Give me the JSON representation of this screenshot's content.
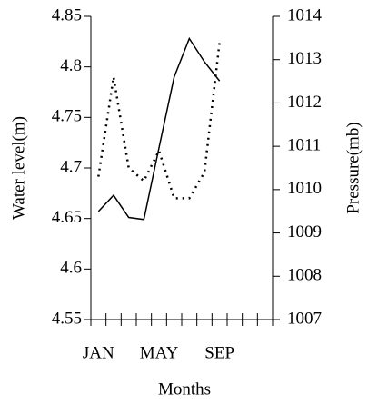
{
  "chart_data": {
    "type": "line",
    "xlabel": "Months",
    "ylabel": "Water level(m)",
    "y2label": "Pressure(mb)",
    "categories": [
      "JAN",
      null,
      null,
      null,
      "MAY",
      null,
      null,
      null,
      "SEP",
      null,
      null,
      null
    ],
    "series": [
      {
        "color": "#000000",
        "dash": "solid",
        "values": [
          4.657,
          4.673,
          4.651,
          4.649,
          4.72,
          4.79,
          4.828,
          4.805,
          4.786,
          null,
          null,
          null
        ]
      },
      {
        "color": "#000000",
        "dash": "dotted",
        "axis": "y2",
        "values": [
          1010.3,
          1012.6,
          1010.5,
          1010.2,
          1010.9,
          1009.8,
          1009.8,
          1010.4,
          1013.4,
          null,
          null,
          null
        ]
      }
    ],
    "ylim": [
      4.55,
      4.85
    ],
    "yticks": [
      4.55,
      4.6,
      4.65,
      4.7,
      4.75,
      4.8,
      4.85
    ],
    "y2lim": [
      1007,
      1014
    ],
    "y2ticks": [
      1007,
      1008,
      1009,
      1010,
      1011,
      1012,
      1013,
      1014
    ]
  }
}
